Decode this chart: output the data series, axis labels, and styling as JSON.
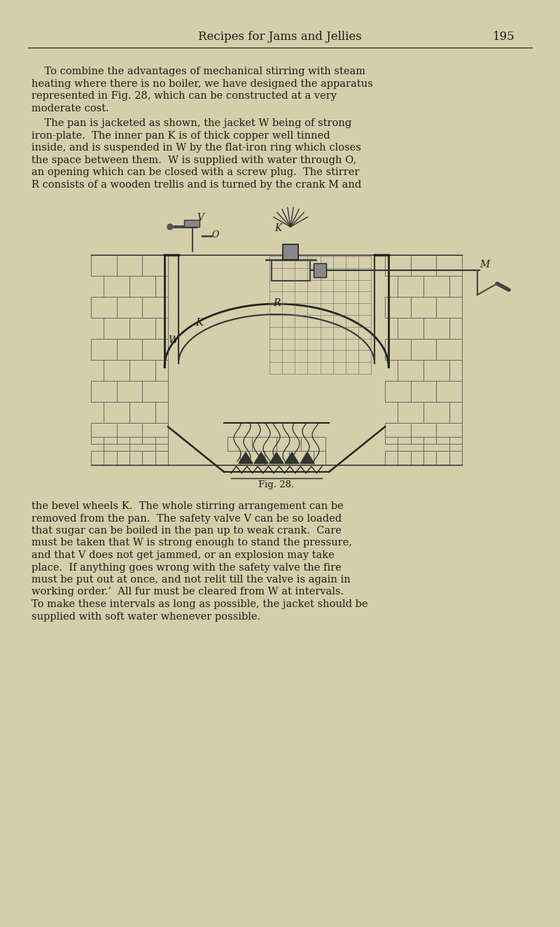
{
  "background_color": "#d4ceaa",
  "page_width": 8.0,
  "page_height": 13.24,
  "header_text": "Recipes for Jams and Jellies",
  "page_number": "195",
  "body_fontsize": 10.5,
  "caption_fontsize": 9.5,
  "text_color": "#1c1c1c",
  "para1_lines": [
    "    To combine the advantages of mechanical stirring with steam",
    "heating where there is no boiler, we have designed the apparatus",
    "represented in Fig. 28, which can be constructed at a very",
    "moderate cost."
  ],
  "para2_lines": [
    "    The pan is jacketed as shown, the jacket W being of strong",
    "iron-plate.  The inner pan K is of thick copper well tinned",
    "inside, and is suspended in W by the flat-iron ring which closes",
    "the space between them.  W is supplied with water through O,",
    "an opening which can be closed with a screw plug.  The stirrer",
    "R consists of a wooden trellis and is turned by the crank M and"
  ],
  "para3_lines": [
    "the bevel wheels K.  The whole stirring arrangement can be",
    "removed from the pan.  The safety valve V can be so loaded",
    "that sugar can be boiled in the pan up to weak crank.  Care",
    "must be taken that W is strong enough to stand the pressure,",
    "and that V does not get jammed, or an explosion may take",
    "place.  If anything goes wrong with the safety valve the fire",
    "must be put out at once, and not relit till the valve is again in",
    "working order.’  All fur must be cleared from W at intervals.",
    "To make these intervals as long as possible, the jacket should be",
    "supplied with soft water whenever possible."
  ],
  "fig_caption": "Fig. 28."
}
